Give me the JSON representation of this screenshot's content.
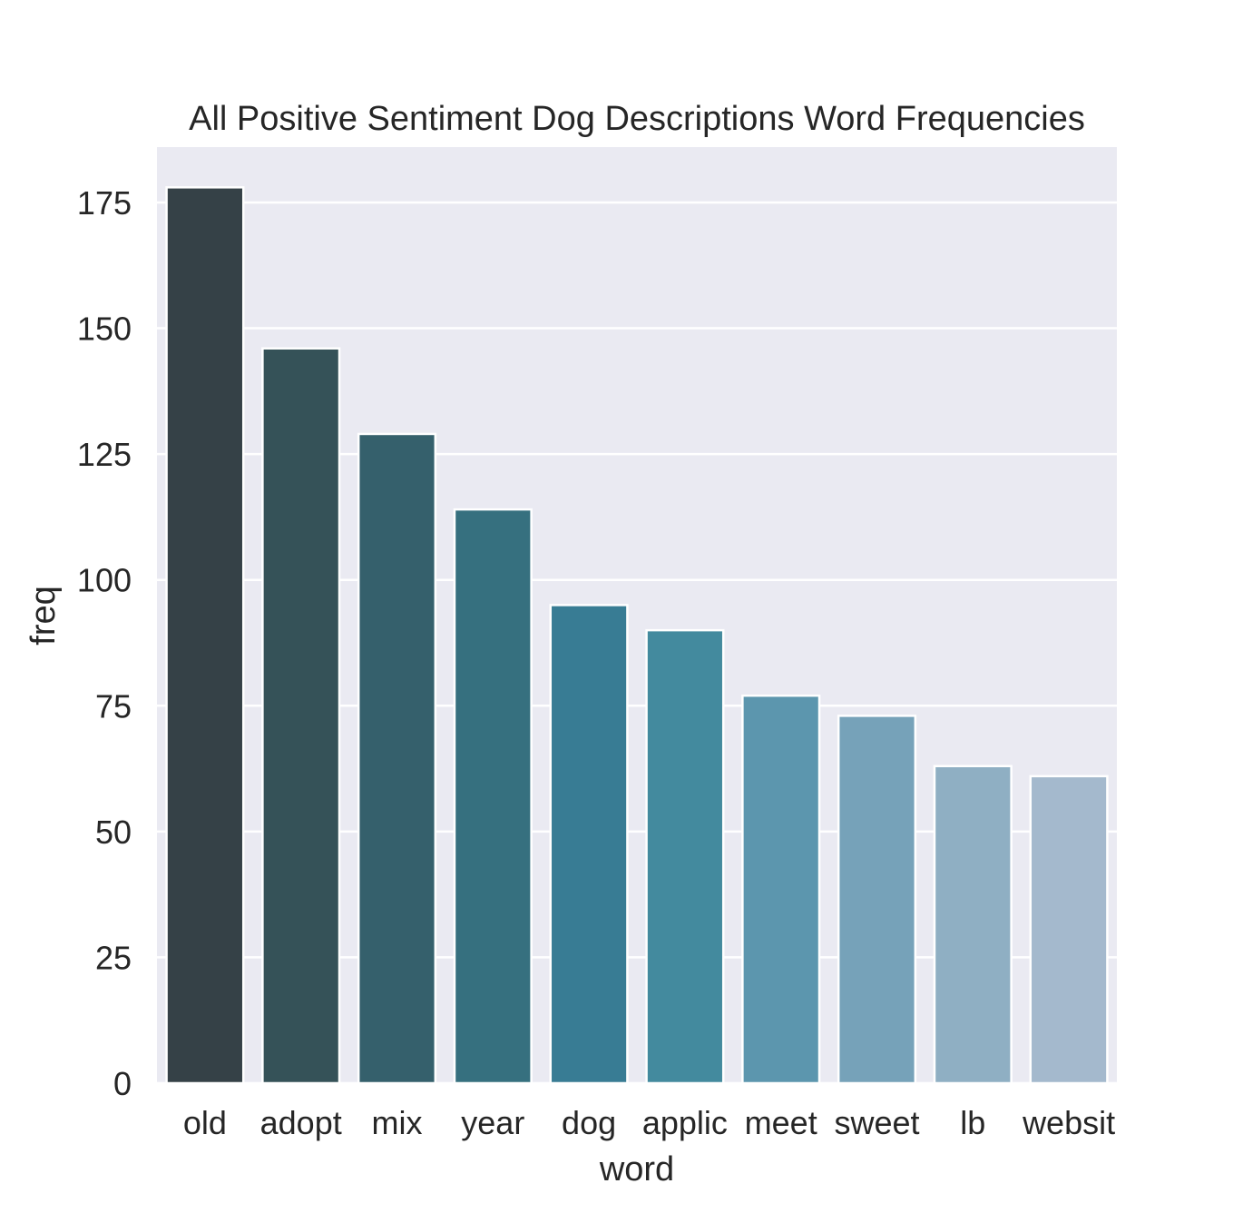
{
  "chart_data": {
    "type": "bar",
    "title": "All Positive Sentiment Dog Descriptions Word Frequencies",
    "xlabel": "word",
    "ylabel": "freq",
    "categories": [
      "old",
      "adopt",
      "mix",
      "year",
      "dog",
      "applic",
      "meet",
      "sweet",
      "lb",
      "websit"
    ],
    "values": [
      178,
      146,
      129,
      114,
      95,
      90,
      77,
      73,
      63,
      61
    ],
    "colors": [
      "#354147",
      "#355258",
      "#35606c",
      "#36707f",
      "#387c94",
      "#438a9e",
      "#5c96ae",
      "#76a2b9",
      "#8fafc3",
      "#a4b9cd"
    ],
    "ylim": [
      0,
      186
    ],
    "yticks": [
      0,
      25,
      50,
      75,
      100,
      125,
      150,
      175
    ],
    "grid": true,
    "background": "#eaeaf2",
    "grid_color": "#ffffff"
  }
}
